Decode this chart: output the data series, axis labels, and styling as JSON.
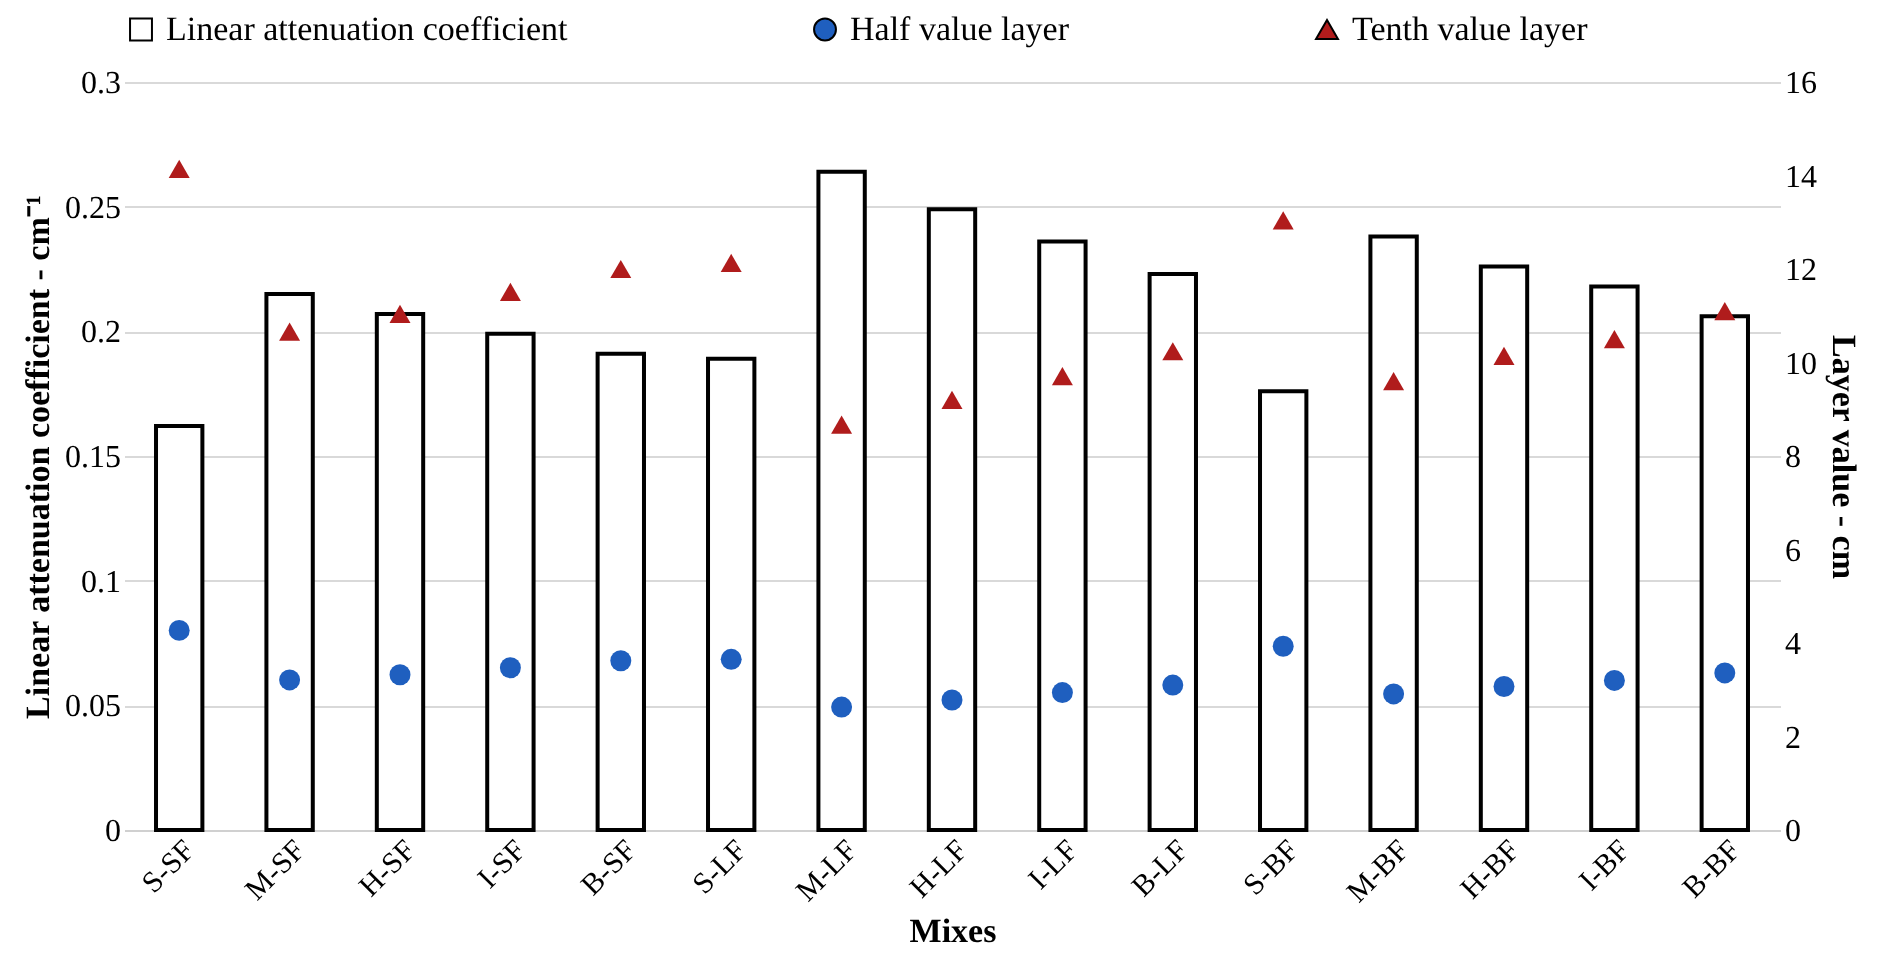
{
  "chart_data": {
    "type": "bar",
    "xlabel": "Mixes",
    "ylabel": "Linear attenuation coefficient - cm⁻¹",
    "y2label": "Layer value - cm",
    "categories": [
      "S-SF",
      "M-SF",
      "H-SF",
      "I-SF",
      "B-SF",
      "S-LF",
      "M-LF",
      "H-LF",
      "I-LF",
      "B-LF",
      "S-BF",
      "M-BF",
      "H-BF",
      "I-BF",
      "B-BF"
    ],
    "series": [
      {
        "name": "Linear attenuation coefficient",
        "color": "#ffffff",
        "values": [
          0.162,
          0.215,
          0.207,
          0.199,
          0.191,
          0.189,
          0.264,
          0.249,
          0.236,
          0.223,
          0.176,
          0.238,
          0.226,
          0.218,
          0.206
        ]
      },
      {
        "name": "Half value layer",
        "type": "scatter",
        "axis": "y2",
        "marker": "circle",
        "color": "#1f5fbf",
        "values": [
          4.27,
          3.21,
          3.32,
          3.47,
          3.62,
          3.65,
          2.63,
          2.78,
          2.94,
          3.1,
          3.93,
          2.91,
          3.07,
          3.2,
          3.36
        ]
      },
      {
        "name": "Tenth value layer",
        "type": "scatter",
        "axis": "y2",
        "marker": "triangle",
        "color": "#b01c1c",
        "values": [
          14.14,
          10.66,
          11.04,
          11.51,
          12.0,
          12.13,
          8.67,
          9.2,
          9.71,
          10.24,
          13.04,
          9.6,
          10.14,
          10.5,
          11.1
        ]
      }
    ],
    "ylim": [
      0,
      0.3
    ],
    "yticks": [
      0,
      0.05,
      0.1,
      0.15,
      0.2,
      0.25,
      0.3
    ],
    "y2lim": [
      0,
      16
    ],
    "y2ticks": [
      0,
      2,
      4,
      6,
      8,
      10,
      12,
      14,
      16
    ],
    "grid": "y",
    "legend": "top"
  }
}
